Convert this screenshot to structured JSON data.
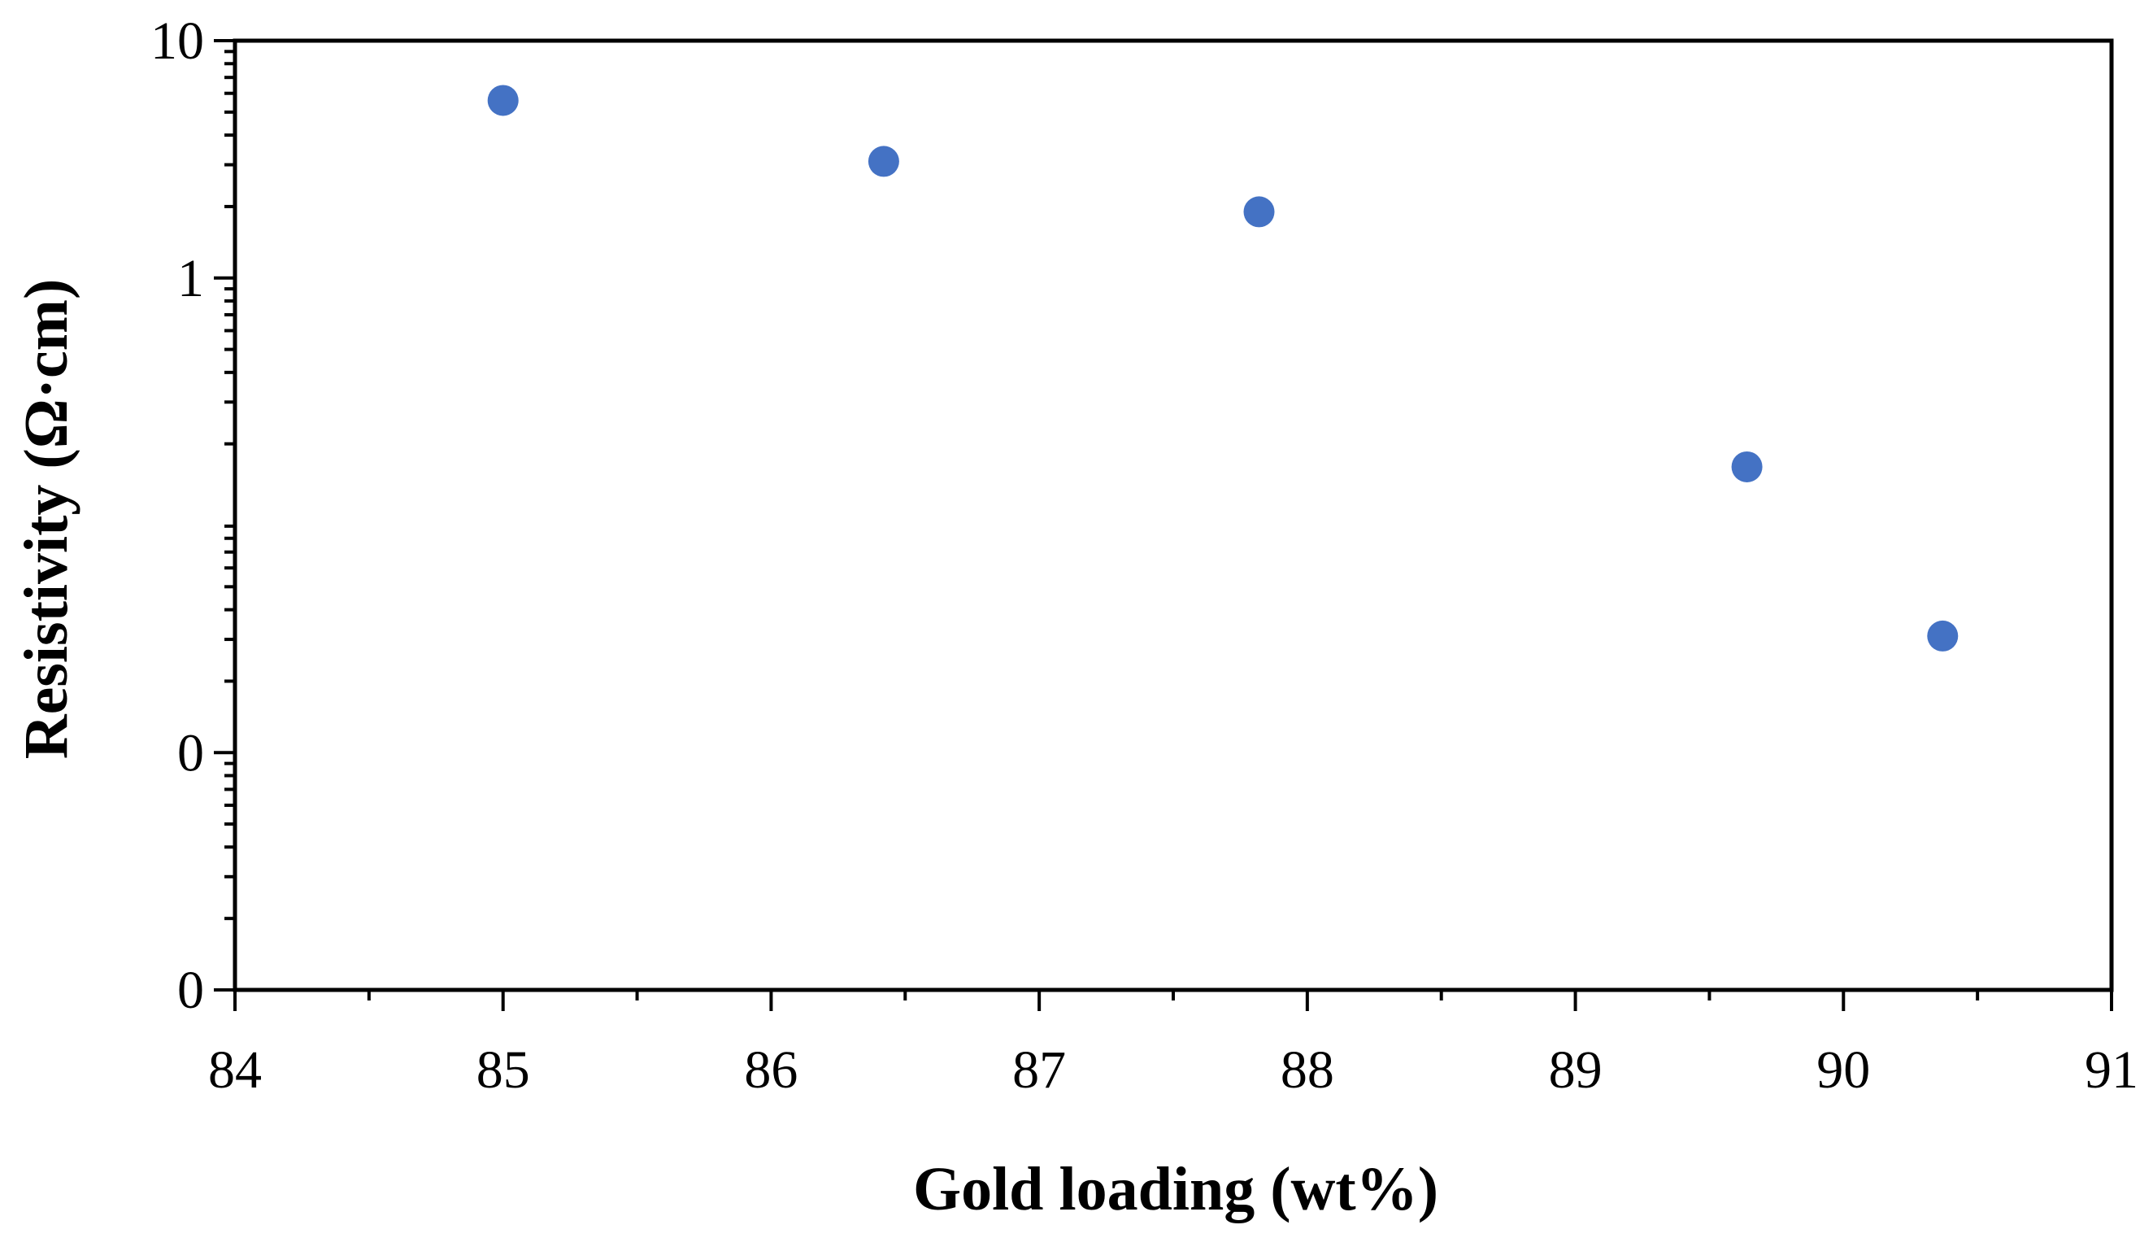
{
  "chart_data": {
    "type": "scatter",
    "title": "",
    "xlabel": "Gold loading (wt%)",
    "ylabel": "Resistivity (Ω·cm)",
    "x_scale": "linear",
    "y_scale": "log",
    "xlim": [
      84,
      91
    ],
    "ylim": [
      0.001,
      10
    ],
    "x_ticks": [
      84,
      85,
      86,
      87,
      88,
      89,
      90,
      91
    ],
    "y_ticks": [
      {
        "value": 0.001,
        "label": "0"
      },
      {
        "value": 0.01,
        "label": "0"
      },
      {
        "value": 1,
        "label": "1"
      },
      {
        "value": 10,
        "label": "10"
      }
    ],
    "grid": false,
    "legend": "none",
    "series": [
      {
        "marker": "circle",
        "color": "#4472C4",
        "points": [
          {
            "x": 85.0,
            "y": 5.6
          },
          {
            "x": 86.42,
            "y": 3.1
          },
          {
            "x": 87.82,
            "y": 1.9
          },
          {
            "x": 89.64,
            "y": 0.16
          },
          {
            "x": 90.37,
            "y": 0.031
          }
        ]
      }
    ]
  }
}
